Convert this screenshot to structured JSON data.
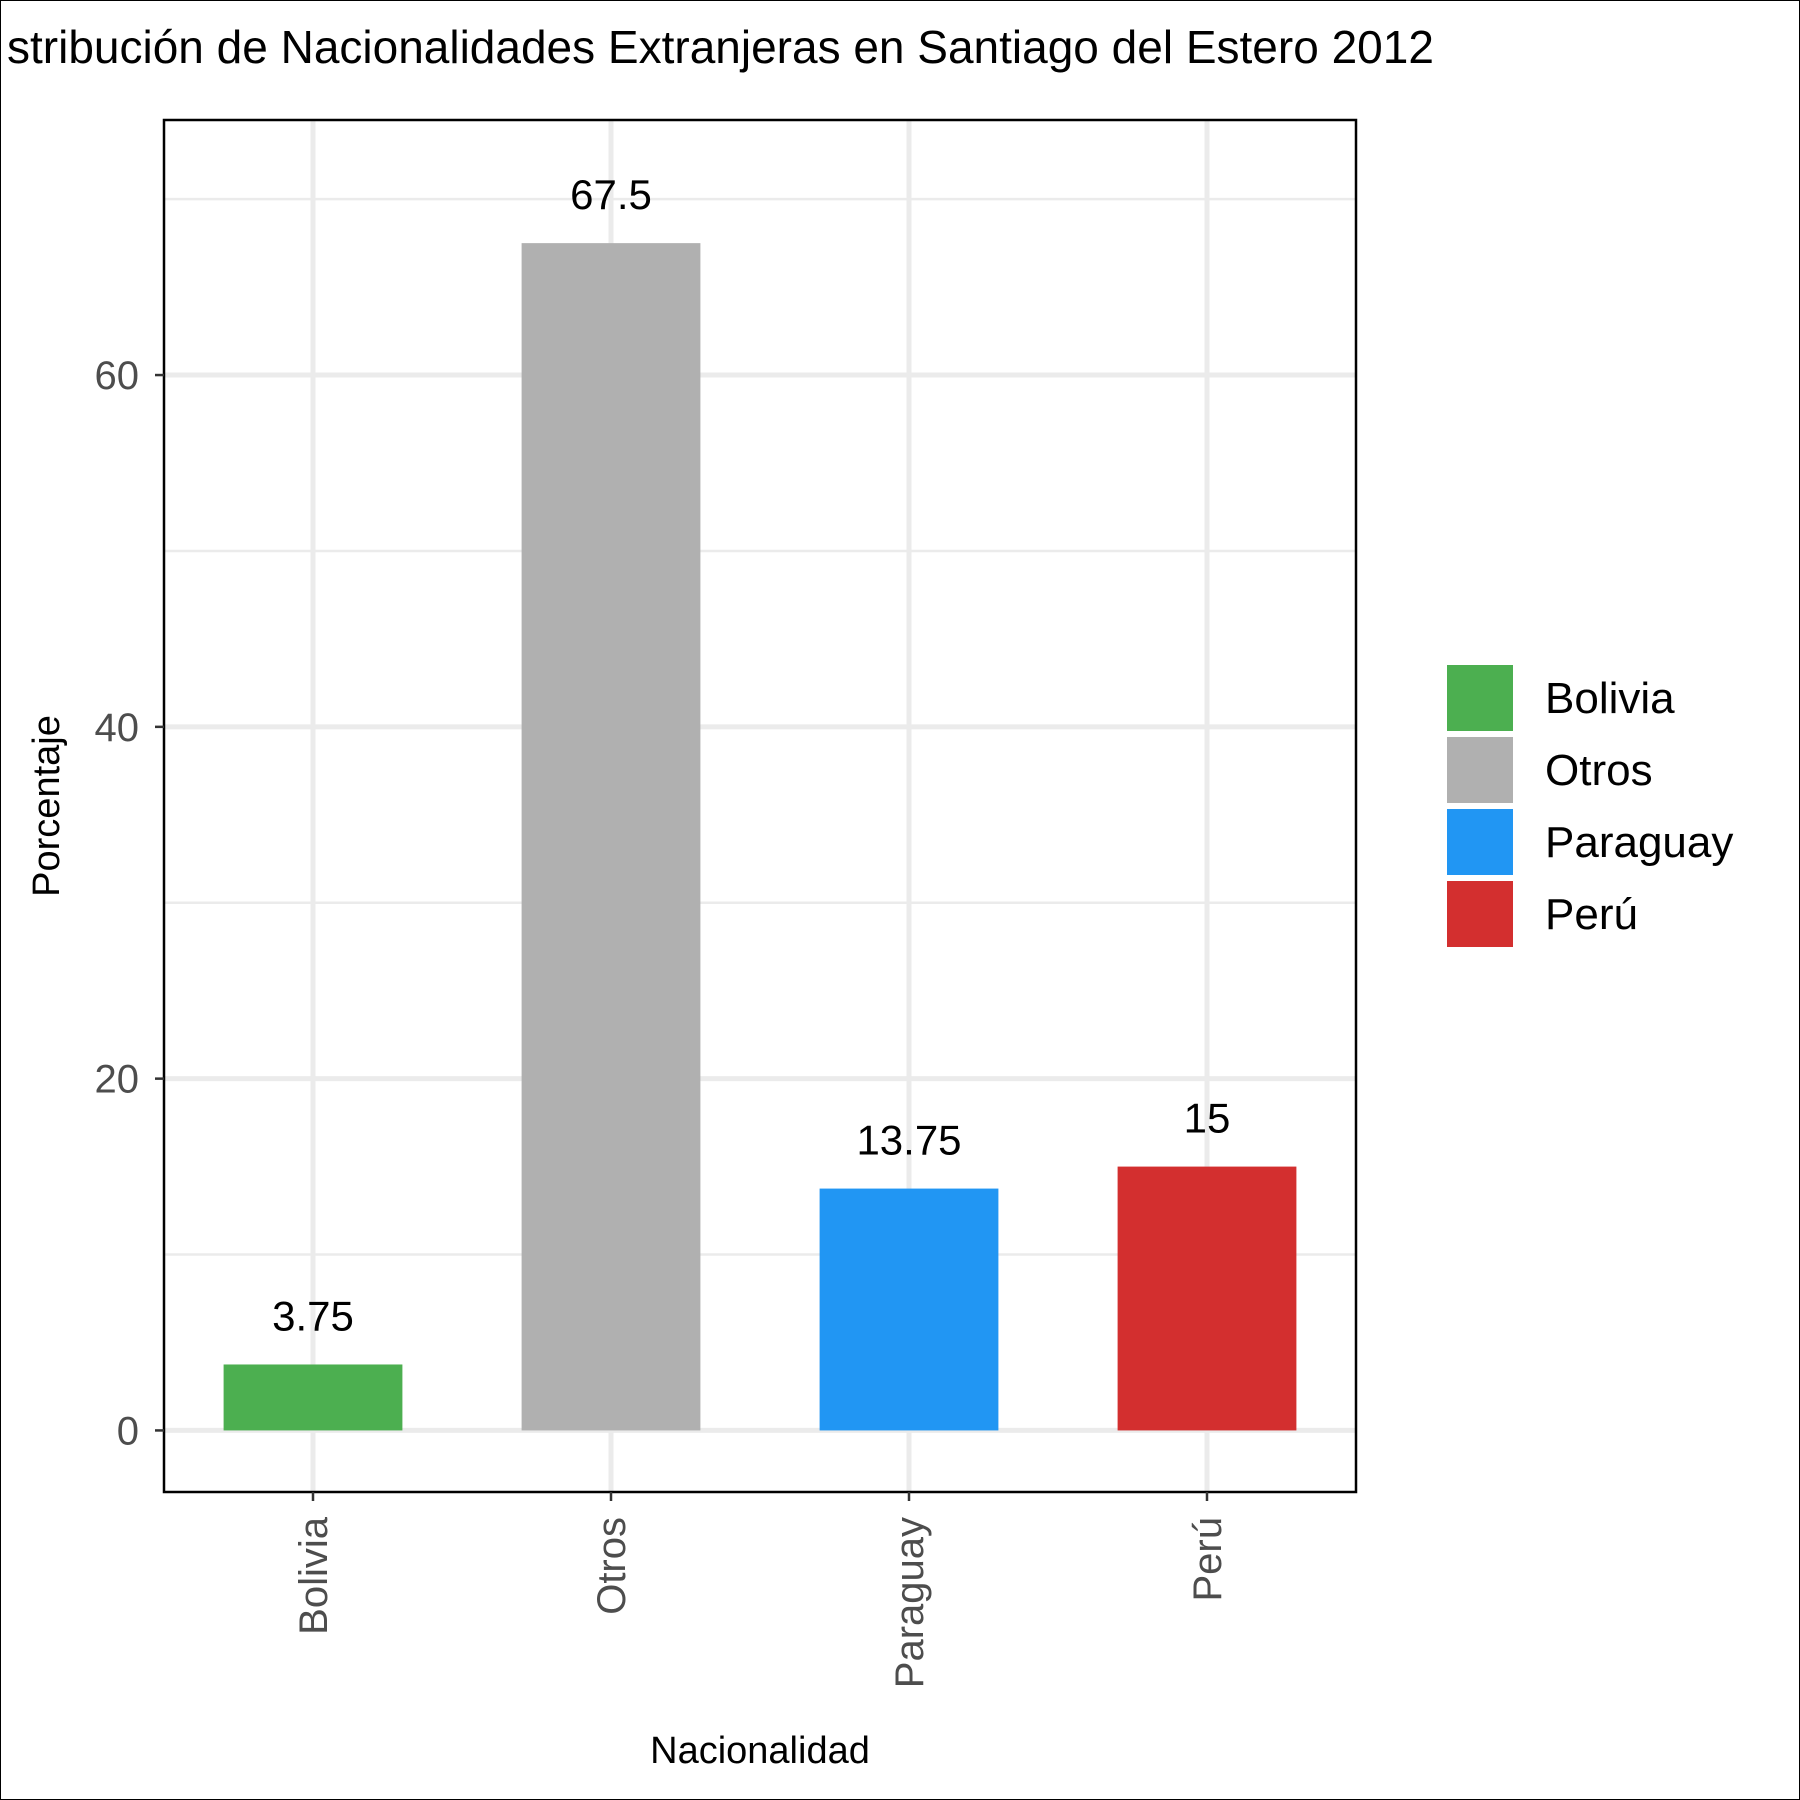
{
  "chart_data": {
    "type": "bar",
    "title": "stribución de Nacionalidades Extranjeras en Santiago del Estero 2012",
    "xlabel": "Nacionalidad",
    "ylabel": "Porcentaje",
    "categories": [
      "Bolivia",
      "Otros",
      "Paraguay",
      "Perú"
    ],
    "values": [
      3.75,
      67.5,
      13.75,
      15
    ],
    "value_labels": [
      "3.75",
      "67.5",
      "13.75",
      "15"
    ],
    "colors": [
      "#4caf50",
      "#b0b0b0",
      "#2196f3",
      "#d32f2f"
    ],
    "ylim": [
      -3.5,
      74.5
    ],
    "yticks": [
      0,
      20,
      40,
      60
    ],
    "ytick_labels": [
      "0",
      "20",
      "40",
      "60"
    ],
    "grid": true,
    "x_tick_rotation": "vertical",
    "legend": {
      "position": "right",
      "entries": [
        "Bolivia",
        "Otros",
        "Paraguay",
        "Perú"
      ]
    }
  }
}
